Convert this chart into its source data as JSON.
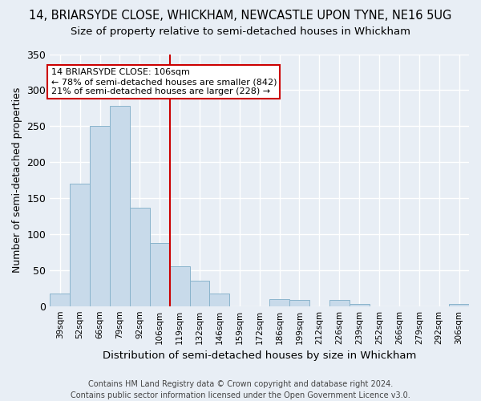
{
  "title": "14, BRIARSYDE CLOSE, WHICKHAM, NEWCASTLE UPON TYNE, NE16 5UG",
  "subtitle": "Size of property relative to semi-detached houses in Whickham",
  "xlabel": "Distribution of semi-detached houses by size in Whickham",
  "ylabel": "Number of semi-detached properties",
  "footer": "Contains HM Land Registry data © Crown copyright and database right 2024.\nContains public sector information licensed under the Open Government Licence v3.0.",
  "categories": [
    "39sqm",
    "52sqm",
    "66sqm",
    "79sqm",
    "92sqm",
    "106sqm",
    "119sqm",
    "132sqm",
    "146sqm",
    "159sqm",
    "172sqm",
    "186sqm",
    "199sqm",
    "212sqm",
    "226sqm",
    "239sqm",
    "252sqm",
    "266sqm",
    "279sqm",
    "292sqm",
    "306sqm"
  ],
  "values": [
    18,
    170,
    250,
    278,
    137,
    88,
    55,
    35,
    18,
    0,
    0,
    10,
    8,
    0,
    8,
    3,
    0,
    0,
    0,
    0,
    3
  ],
  "bar_color": "#c8daea",
  "bar_edge_color": "#8ab4cc",
  "vline_x_index": 5,
  "vline_color": "#cc0000",
  "annotation_box_color": "#cc0000",
  "annotation_lines": [
    "14 BRIARSYDE CLOSE: 106sqm",
    "← 78% of semi-detached houses are smaller (842)",
    "21% of semi-detached houses are larger (228) →"
  ],
  "ylim": [
    0,
    350
  ],
  "yticks": [
    0,
    50,
    100,
    150,
    200,
    250,
    300,
    350
  ],
  "background_color": "#e8eef5",
  "plot_background_color": "#e8eef5",
  "grid_color": "#ffffff",
  "title_fontsize": 10.5,
  "subtitle_fontsize": 9.5
}
